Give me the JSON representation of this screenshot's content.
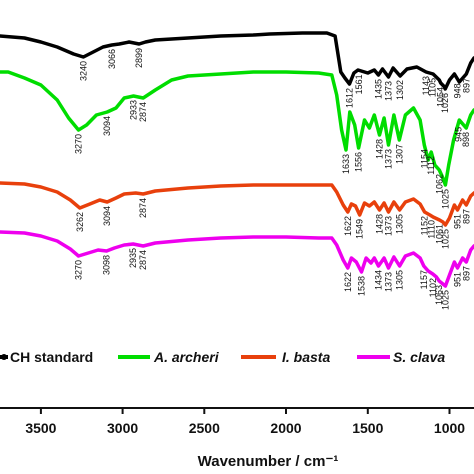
{
  "chart_data": {
    "type": "line",
    "xlabel": "Wavenumber / cm⁻¹",
    "x_range": [
      3750,
      850
    ],
    "x_reversed": true,
    "x_ticks": [
      3500,
      3000,
      2500,
      2000,
      1500,
      1000
    ],
    "x_tick_labels": [
      "3500",
      "3000",
      "2500",
      "2000",
      "1500",
      "1000"
    ],
    "grid": false,
    "legend_placement": "bottom",
    "series": [
      {
        "name": "CH standard",
        "color": "#000000",
        "points": [
          [
            3750,
            36
          ],
          [
            3600,
            38
          ],
          [
            3500,
            42
          ],
          [
            3400,
            47
          ],
          [
            3300,
            54
          ],
          [
            3240,
            57
          ],
          [
            3180,
            52
          ],
          [
            3120,
            47
          ],
          [
            3066,
            45
          ],
          [
            3020,
            44
          ],
          [
            2960,
            42
          ],
          [
            2899,
            44
          ],
          [
            2860,
            42
          ],
          [
            2800,
            40
          ],
          [
            2600,
            38
          ],
          [
            2400,
            36
          ],
          [
            2200,
            35
          ],
          [
            2100,
            34
          ],
          [
            1900,
            33
          ],
          [
            1750,
            33
          ],
          [
            1700,
            36
          ],
          [
            1665,
            72
          ],
          [
            1640,
            78
          ],
          [
            1612,
            84
          ],
          [
            1585,
            73
          ],
          [
            1560,
            70
          ],
          [
            1500,
            73
          ],
          [
            1460,
            70
          ],
          [
            1435,
            75
          ],
          [
            1410,
            69
          ],
          [
            1373,
            77
          ],
          [
            1345,
            68
          ],
          [
            1302,
            76
          ],
          [
            1260,
            69
          ],
          [
            1200,
            67
          ],
          [
            1143,
            72
          ],
          [
            1100,
            74
          ],
          [
            1062,
            80
          ],
          [
            1054,
            83
          ],
          [
            1030,
            87
          ],
          [
            1026,
            89
          ],
          [
            1000,
            80
          ],
          [
            970,
            74
          ],
          [
            940,
            82
          ],
          [
            897,
            74
          ],
          [
            870,
            63
          ],
          [
            850,
            58
          ]
        ]
      },
      {
        "name": "A. archeri",
        "color": "#00dd00",
        "points": [
          [
            3750,
            72
          ],
          [
            3700,
            72
          ],
          [
            3600,
            78
          ],
          [
            3500,
            85
          ],
          [
            3400,
            100
          ],
          [
            3330,
            118
          ],
          [
            3270,
            130
          ],
          [
            3220,
            125
          ],
          [
            3160,
            115
          ],
          [
            3094,
            112
          ],
          [
            3040,
            108
          ],
          [
            2990,
            98
          ],
          [
            2933,
            96
          ],
          [
            2874,
            98
          ],
          [
            2800,
            90
          ],
          [
            2700,
            80
          ],
          [
            2600,
            76
          ],
          [
            2400,
            74
          ],
          [
            2200,
            72
          ],
          [
            2000,
            72
          ],
          [
            1800,
            73
          ],
          [
            1720,
            75
          ],
          [
            1690,
            95
          ],
          [
            1660,
            130
          ],
          [
            1633,
            150
          ],
          [
            1610,
            112
          ],
          [
            1580,
            125
          ],
          [
            1556,
            148
          ],
          [
            1520,
            120
          ],
          [
            1490,
            128
          ],
          [
            1460,
            115
          ],
          [
            1428,
            135
          ],
          [
            1400,
            118
          ],
          [
            1373,
            145
          ],
          [
            1340,
            115
          ],
          [
            1307,
            140
          ],
          [
            1270,
            115
          ],
          [
            1220,
            108
          ],
          [
            1180,
            120
          ],
          [
            1154,
            145
          ],
          [
            1130,
            160
          ],
          [
            1112,
            152
          ],
          [
            1090,
            165
          ],
          [
            1062,
            170
          ],
          [
            1040,
            178
          ],
          [
            1025,
            185
          ],
          [
            1005,
            165
          ],
          [
            975,
            140
          ],
          [
            940,
            120
          ],
          [
            898,
            128
          ],
          [
            870,
            115
          ],
          [
            850,
            110
          ]
        ]
      },
      {
        "name": "I. basta",
        "color": "#e8400c",
        "points": [
          [
            3750,
            183
          ],
          [
            3600,
            184
          ],
          [
            3500,
            187
          ],
          [
            3400,
            192
          ],
          [
            3320,
            200
          ],
          [
            3262,
            208
          ],
          [
            3200,
            204
          ],
          [
            3140,
            200
          ],
          [
            3094,
            202
          ],
          [
            3040,
            198
          ],
          [
            2990,
            194
          ],
          [
            2920,
            193
          ],
          [
            2874,
            194
          ],
          [
            2800,
            191
          ],
          [
            2600,
            188
          ],
          [
            2400,
            186
          ],
          [
            2200,
            185
          ],
          [
            2000,
            185
          ],
          [
            1800,
            185
          ],
          [
            1720,
            185
          ],
          [
            1690,
            192
          ],
          [
            1650,
            205
          ],
          [
            1622,
            212
          ],
          [
            1600,
            204
          ],
          [
            1575,
            206
          ],
          [
            1549,
            215
          ],
          [
            1520,
            203
          ],
          [
            1490,
            206
          ],
          [
            1460,
            202
          ],
          [
            1428,
            210
          ],
          [
            1400,
            203
          ],
          [
            1373,
            212
          ],
          [
            1340,
            202
          ],
          [
            1305,
            210
          ],
          [
            1270,
            202
          ],
          [
            1220,
            199
          ],
          [
            1180,
            204
          ],
          [
            1152,
            212
          ],
          [
            1120,
            215
          ],
          [
            1100,
            217
          ],
          [
            1061,
            220
          ],
          [
            1040,
            222
          ],
          [
            1025,
            225
          ],
          [
            1000,
            218
          ],
          [
            970,
            205
          ],
          [
            951,
            210
          ],
          [
            920,
            200
          ],
          [
            897,
            205
          ],
          [
            870,
            196
          ],
          [
            850,
            193
          ]
        ]
      },
      {
        "name": "S. clava",
        "color": "#ee00ee",
        "points": [
          [
            3750,
            232
          ],
          [
            3600,
            233
          ],
          [
            3500,
            236
          ],
          [
            3400,
            241
          ],
          [
            3320,
            249
          ],
          [
            3270,
            256
          ],
          [
            3210,
            253
          ],
          [
            3150,
            250
          ],
          [
            3098,
            251
          ],
          [
            3050,
            248
          ],
          [
            2990,
            245
          ],
          [
            2935,
            244
          ],
          [
            2874,
            246
          ],
          [
            2800,
            243
          ],
          [
            2600,
            240
          ],
          [
            2400,
            238
          ],
          [
            2200,
            237
          ],
          [
            2000,
            237
          ],
          [
            1800,
            238
          ],
          [
            1720,
            238
          ],
          [
            1690,
            245
          ],
          [
            1650,
            260
          ],
          [
            1622,
            268
          ],
          [
            1600,
            258
          ],
          [
            1570,
            262
          ],
          [
            1538,
            272
          ],
          [
            1510,
            258
          ],
          [
            1480,
            263
          ],
          [
            1460,
            258
          ],
          [
            1434,
            266
          ],
          [
            1400,
            258
          ],
          [
            1373,
            268
          ],
          [
            1340,
            257
          ],
          [
            1305,
            266
          ],
          [
            1270,
            256
          ],
          [
            1220,
            253
          ],
          [
            1180,
            258
          ],
          [
            1157,
            266
          ],
          [
            1130,
            271
          ],
          [
            1102,
            274
          ],
          [
            1080,
            277
          ],
          [
            1063,
            281
          ],
          [
            1040,
            284
          ],
          [
            1025,
            286
          ],
          [
            1000,
            275
          ],
          [
            970,
            262
          ],
          [
            951,
            268
          ],
          [
            920,
            258
          ],
          [
            897,
            262
          ],
          [
            870,
            250
          ],
          [
            850,
            246
          ]
        ]
      }
    ],
    "peak_labels": [
      {
        "series": 0,
        "x": 3240,
        "text": "3240"
      },
      {
        "series": 0,
        "x": 3066,
        "text": "3066"
      },
      {
        "series": 0,
        "x": 2899,
        "text": "2899"
      },
      {
        "series": 0,
        "x": 1612,
        "text": "1612"
      },
      {
        "series": 0,
        "x": 1555,
        "text": "1561"
      },
      {
        "series": 0,
        "x": 1435,
        "text": "1435"
      },
      {
        "series": 0,
        "x": 1373,
        "text": "1373"
      },
      {
        "series": 0,
        "x": 1302,
        "text": "1302"
      },
      {
        "series": 0,
        "x": 1143,
        "text": "1143"
      },
      {
        "series": 0,
        "x": 1105,
        "text": "1105"
      },
      {
        "series": 0,
        "x": 1054,
        "text": "1054"
      },
      {
        "series": 0,
        "x": 1026,
        "text": "1026"
      },
      {
        "series": 0,
        "x": 950,
        "text": "948"
      },
      {
        "series": 0,
        "x": 897,
        "text": "897"
      },
      {
        "series": 1,
        "x": 3270,
        "text": "3270"
      },
      {
        "series": 1,
        "x": 3094,
        "text": "3094"
      },
      {
        "series": 1,
        "x": 2933,
        "text": "2933"
      },
      {
        "series": 1,
        "x": 2874,
        "text": "2874"
      },
      {
        "series": 1,
        "x": 1633,
        "text": "1633"
      },
      {
        "series": 1,
        "x": 1556,
        "text": "1556"
      },
      {
        "series": 1,
        "x": 1428,
        "text": "1428"
      },
      {
        "series": 1,
        "x": 1373,
        "text": "1373"
      },
      {
        "series": 1,
        "x": 1307,
        "text": "1307"
      },
      {
        "series": 1,
        "x": 1154,
        "text": "1154"
      },
      {
        "series": 1,
        "x": 1112,
        "text": "1112"
      },
      {
        "series": 1,
        "x": 1062,
        "text": "1062"
      },
      {
        "series": 1,
        "x": 1025,
        "text": "1025"
      },
      {
        "series": 1,
        "x": 945,
        "text": "945"
      },
      {
        "series": 1,
        "x": 898,
        "text": "898"
      },
      {
        "series": 2,
        "x": 3262,
        "text": "3262"
      },
      {
        "series": 2,
        "x": 3094,
        "text": "3094"
      },
      {
        "series": 2,
        "x": 2874,
        "text": "2874"
      },
      {
        "series": 2,
        "x": 1622,
        "text": "1622"
      },
      {
        "series": 2,
        "x": 1549,
        "text": "1549"
      },
      {
        "series": 2,
        "x": 1428,
        "text": "1428"
      },
      {
        "series": 2,
        "x": 1373,
        "text": "1373"
      },
      {
        "series": 2,
        "x": 1305,
        "text": "1305"
      },
      {
        "series": 2,
        "x": 1152,
        "text": "1152"
      },
      {
        "series": 2,
        "x": 1110,
        "text": "1110"
      },
      {
        "series": 2,
        "x": 1061,
        "text": "1061"
      },
      {
        "series": 2,
        "x": 1025,
        "text": "1025"
      },
      {
        "series": 2,
        "x": 951,
        "text": "951"
      },
      {
        "series": 2,
        "x": 897,
        "text": "897"
      },
      {
        "series": 3,
        "x": 3270,
        "text": "3270"
      },
      {
        "series": 3,
        "x": 3098,
        "text": "3098"
      },
      {
        "series": 3,
        "x": 2935,
        "text": "2935"
      },
      {
        "series": 3,
        "x": 2874,
        "text": "2874"
      },
      {
        "series": 3,
        "x": 1622,
        "text": "1622"
      },
      {
        "series": 3,
        "x": 1538,
        "text": "1538"
      },
      {
        "series": 3,
        "x": 1434,
        "text": "1434"
      },
      {
        "series": 3,
        "x": 1373,
        "text": "1373"
      },
      {
        "series": 3,
        "x": 1305,
        "text": "1305"
      },
      {
        "series": 3,
        "x": 1157,
        "text": "1157"
      },
      {
        "series": 3,
        "x": 1102,
        "text": "1102"
      },
      {
        "series": 3,
        "x": 1063,
        "text": "1063"
      },
      {
        "series": 3,
        "x": 1025,
        "text": "1025"
      },
      {
        "series": 3,
        "x": 951,
        "text": "951"
      },
      {
        "series": 3,
        "x": 897,
        "text": "897"
      }
    ],
    "legend": [
      {
        "label": "CH standard",
        "color": "#000000",
        "italic": false
      },
      {
        "label": "A. archeri",
        "color": "#00dd00",
        "italic": true
      },
      {
        "label": "I. basta",
        "color": "#e8400c",
        "italic": true
      },
      {
        "label": "S. clava",
        "color": "#ee00ee",
        "italic": true
      }
    ]
  }
}
